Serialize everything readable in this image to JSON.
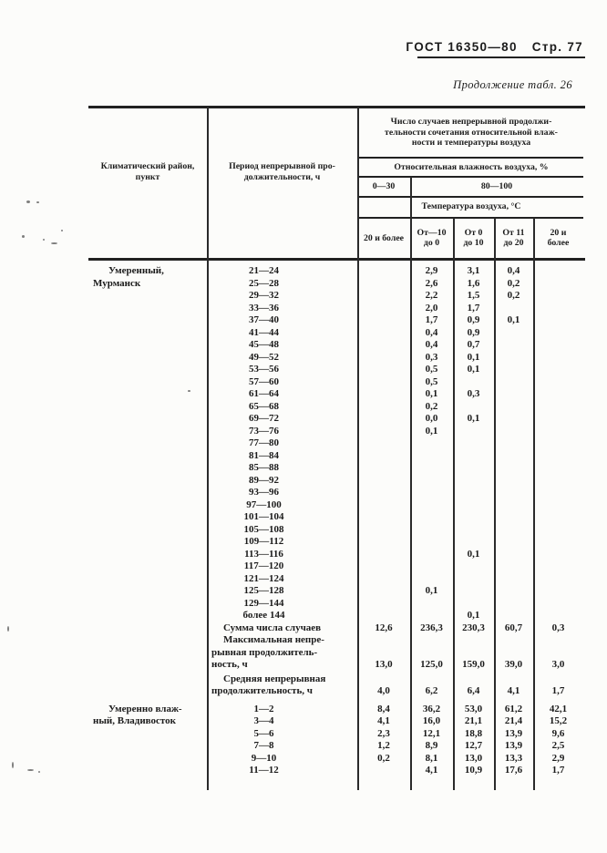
{
  "page_header": {
    "gost": "ГОСТ 16350—80",
    "page": "Стр. 77",
    "continuation": "Продолжение табл. 26"
  },
  "table": {
    "col1_header": "Климатический район,\nпункт",
    "col2_header": "Период непрерывной про-\nдолжительности, ч",
    "group_header": "Число случаев непрерывной продолжи-\nтельности сочетания относительной влаж-\nности и температуры воздуха",
    "humidity_header": "Относительная влажность воздуха, %",
    "humidity_ranges": [
      "0—30",
      "80—100"
    ],
    "temp_header": "Температура воздуха, °С",
    "temp_cols": [
      "20 и более",
      "От—10\nдо 0",
      "От 0\nдо 10",
      "От 11\nдо 20",
      "20 и\nболее"
    ],
    "sections": [
      {
        "region": "Умеренный,\nМурманск",
        "rows": [
          {
            "period": "21—24",
            "values": [
              "",
              "2,9",
              "3,1",
              "0,4",
              ""
            ]
          },
          {
            "period": "25—28",
            "values": [
              "",
              "2,6",
              "1,6",
              "0,2",
              ""
            ]
          },
          {
            "period": "29—32",
            "values": [
              "",
              "2,2",
              "1,5",
              "0,2",
              ""
            ]
          },
          {
            "period": "33—36",
            "values": [
              "",
              "2,0",
              "1,7",
              "",
              ""
            ]
          },
          {
            "period": "37—40",
            "values": [
              "",
              "1,7",
              "0,9",
              "0,1",
              ""
            ]
          },
          {
            "period": "41—44",
            "values": [
              "",
              "0,4",
              "0,9",
              "",
              ""
            ]
          },
          {
            "period": "45—48",
            "values": [
              "",
              "0,4",
              "0,7",
              "",
              ""
            ]
          },
          {
            "period": "49—52",
            "values": [
              "",
              "0,3",
              "0,1",
              "",
              ""
            ]
          },
          {
            "period": "53—56",
            "values": [
              "",
              "0,5",
              "0,1",
              "",
              ""
            ]
          },
          {
            "period": "57—60",
            "values": [
              "",
              "0,5",
              "",
              "",
              ""
            ]
          },
          {
            "period": "61—64",
            "values": [
              "",
              "0,1",
              "0,3",
              "",
              ""
            ]
          },
          {
            "period": "65—68",
            "values": [
              "",
              "0,2",
              "",
              "",
              ""
            ]
          },
          {
            "period": "69—72",
            "values": [
              "",
              "0,0",
              "0,1",
              "",
              ""
            ]
          },
          {
            "period": "73—76",
            "values": [
              "",
              "0,1",
              "",
              "",
              ""
            ]
          },
          {
            "period": "77—80",
            "values": [
              "",
              "",
              "",
              "",
              ""
            ]
          },
          {
            "period": "81—84",
            "values": [
              "",
              "",
              "",
              "",
              ""
            ]
          },
          {
            "period": "85—88",
            "values": [
              "",
              "",
              "",
              "",
              ""
            ]
          },
          {
            "period": "89—92",
            "values": [
              "",
              "",
              "",
              "",
              ""
            ]
          },
          {
            "period": "93—96",
            "values": [
              "",
              "",
              "",
              "",
              ""
            ]
          },
          {
            "period": "97—100",
            "values": [
              "",
              "",
              "",
              "",
              ""
            ]
          },
          {
            "period": "101—104",
            "values": [
              "",
              "",
              "",
              "",
              ""
            ]
          },
          {
            "period": "105—108",
            "values": [
              "",
              "",
              "",
              "",
              ""
            ]
          },
          {
            "period": "109—112",
            "values": [
              "",
              "",
              "",
              "",
              ""
            ]
          },
          {
            "period": "113—116",
            "values": [
              "",
              "",
              "0,1",
              "",
              ""
            ]
          },
          {
            "period": "117—120",
            "values": [
              "",
              "",
              "",
              "",
              ""
            ]
          },
          {
            "period": "121—124",
            "values": [
              "",
              "",
              "",
              "",
              ""
            ]
          },
          {
            "period": "125—128",
            "values": [
              "",
              "0,1",
              "",
              "",
              ""
            ]
          },
          {
            "period": "129—144",
            "values": [
              "",
              "",
              "",
              "",
              ""
            ]
          },
          {
            "period": "более 144",
            "values": [
              "",
              "",
              "0,1",
              "",
              ""
            ]
          }
        ],
        "summary": [
          {
            "label": "Сумма числа случаев",
            "values": [
              "12,6",
              "236,3",
              "230,3",
              "60,7",
              "0,3"
            ]
          },
          {
            "label": "Максимальная непре-\nрывная продолжитель-\nность, ч",
            "values": [
              "13,0",
              "125,0",
              "159,0",
              "39,0",
              "3,0"
            ]
          },
          {
            "label": "Средняя непрерывная\nпродолжительность, ч",
            "values": [
              "4,0",
              "6,2",
              "6,4",
              "4,1",
              "1,7"
            ]
          }
        ]
      },
      {
        "region": "Умеренно влаж-\nный, Владивосток",
        "rows": [
          {
            "period": "1—2",
            "values": [
              "8,4",
              "36,2",
              "53,0",
              "61,2",
              "42,1"
            ]
          },
          {
            "period": "3—4",
            "values": [
              "4,1",
              "16,0",
              "21,1",
              "21,4",
              "15,2"
            ]
          },
          {
            "period": "5—6",
            "values": [
              "2,3",
              "12,1",
              "18,8",
              "13,9",
              "9,6"
            ]
          },
          {
            "period": "7—8",
            "values": [
              "1,2",
              "8,9",
              "12,7",
              "13,9",
              "2,5"
            ]
          },
          {
            "period": "9—10",
            "values": [
              "0,2",
              "8,1",
              "13,0",
              "13,3",
              "2,9"
            ]
          },
          {
            "period": "11—12",
            "values": [
              "",
              "4,1",
              "10,9",
              "17,6",
              "1,7"
            ]
          }
        ],
        "summary": []
      }
    ]
  }
}
